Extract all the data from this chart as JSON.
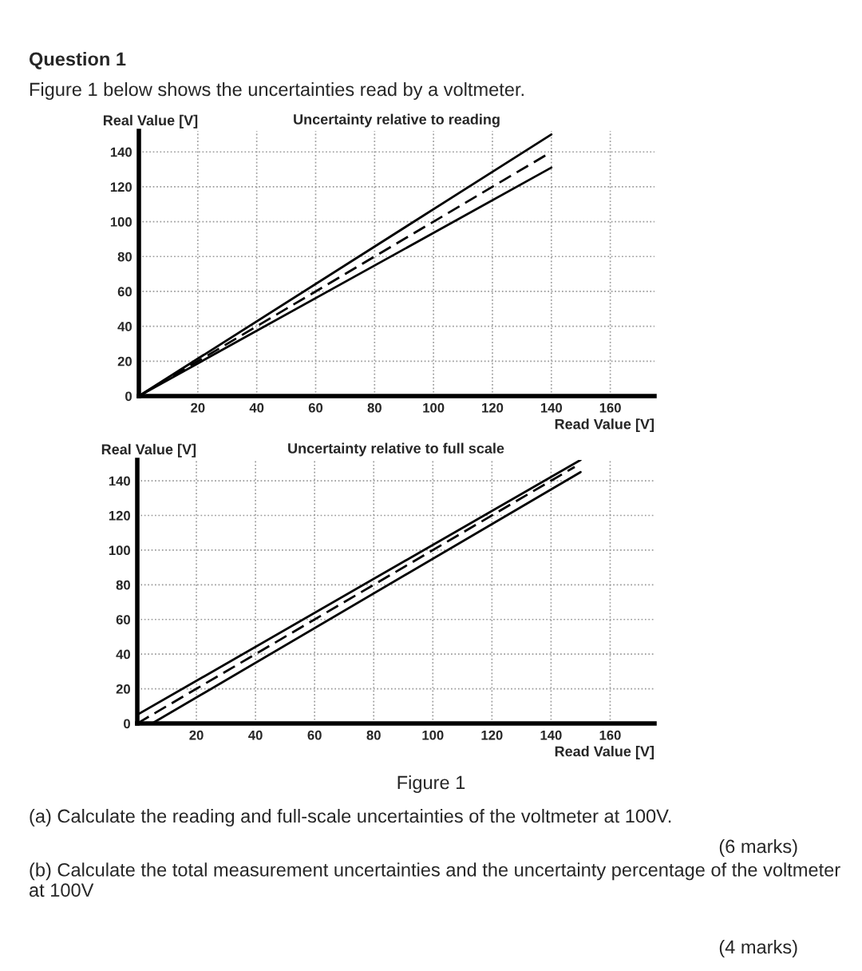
{
  "chart_data": [
    {
      "type": "line",
      "title": "Uncertainty relative to reading",
      "xlabel": "Read Value [V]",
      "ylabel": "Real Value [V]",
      "xlim": [
        0,
        175
      ],
      "ylim": [
        0,
        152
      ],
      "xticks": [
        20,
        40,
        60,
        80,
        100,
        120,
        140,
        160
      ],
      "yticks": [
        0,
        20,
        40,
        60,
        80,
        100,
        120,
        140
      ],
      "grid": true,
      "series": [
        {
          "color": "#000000",
          "x": [
            0,
            140
          ],
          "values": [
            0,
            150
          ],
          "line_style": "solid"
        },
        {
          "color": "#000000",
          "x": [
            0,
            140
          ],
          "values": [
            0,
            140
          ],
          "line_style": "dashed"
        },
        {
          "color": "#000000",
          "x": [
            0,
            140
          ],
          "values": [
            0,
            131
          ],
          "line_style": "solid"
        }
      ],
      "annotations": [
        "Question 1",
        "Figure 1 below shows the uncertainties read by a voltmeter."
      ]
    },
    {
      "type": "line",
      "title": "Uncertainty relative to full scale",
      "xlabel": "Read Value [V]",
      "ylabel": "Real Value [V]",
      "xlim": [
        0,
        175
      ],
      "ylim": [
        0,
        152
      ],
      "xticks": [
        20,
        40,
        60,
        80,
        100,
        120,
        140,
        160
      ],
      "yticks": [
        0,
        20,
        40,
        60,
        80,
        100,
        120,
        140
      ],
      "grid": true,
      "series": [
        {
          "color": "#000000",
          "x": [
            0,
            150
          ],
          "values": [
            5,
            152
          ],
          "line_style": "solid"
        },
        {
          "color": "#000000",
          "x": [
            0,
            148
          ],
          "values": [
            0,
            148
          ],
          "line_style": "dashed"
        },
        {
          "color": "#000000",
          "x": [
            5,
            150
          ],
          "values": [
            0,
            145
          ],
          "line_style": "solid"
        }
      ],
      "annotations": [
        "Figure 1",
        "(a) Calculate the reading and full-scale uncertainties of the voltmeter at 100V.",
        "(6 marks)",
        "(b) Calculate the total measurement uncertainties and the uncertainty percentage of the voltmeter at 100V",
        "(4 marks)"
      ]
    }
  ]
}
